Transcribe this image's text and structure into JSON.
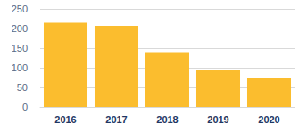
{
  "chart_data": {
    "type": "bar",
    "categories": [
      "2016",
      "2017",
      "2018",
      "2019",
      "2020"
    ],
    "values": [
      215,
      207,
      140,
      95,
      75
    ],
    "color": "#fbbd2e",
    "ylim": [
      0,
      250
    ],
    "yticks": [
      0,
      50,
      100,
      150,
      200,
      250
    ],
    "grid": true
  }
}
